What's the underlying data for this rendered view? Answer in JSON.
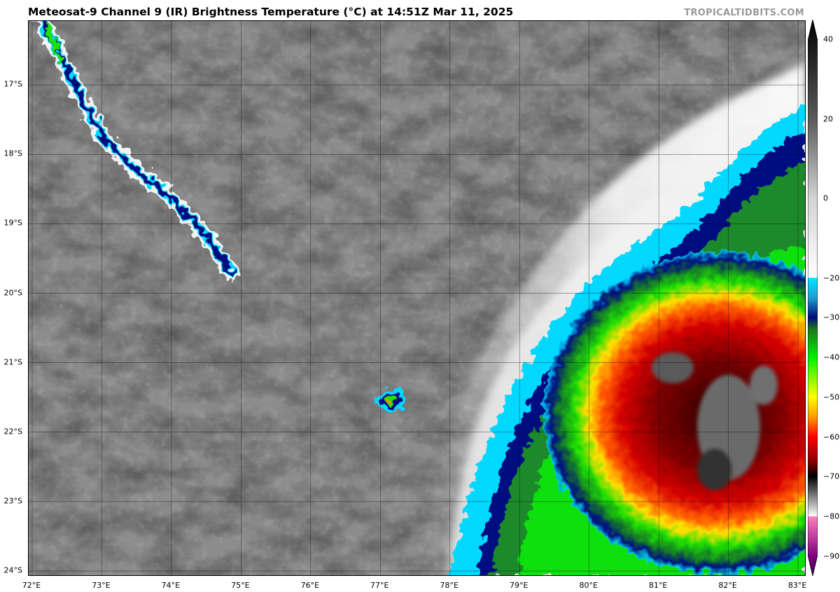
{
  "header": {
    "title": "Meteosat-9 Channel 9 (IR) Brightness Temperature (°C) at 14:51Z Mar 11, 2025",
    "credit": "TROPICALTIDBITS.COM"
  },
  "map": {
    "lat_labels": [
      "17°S",
      "18°S",
      "19°S",
      "20°S",
      "21°S",
      "22°S",
      "23°S",
      "24°S"
    ],
    "lon_labels": [
      "72°E",
      "73°E",
      "74°E",
      "75°E",
      "76°E",
      "77°E",
      "78°E",
      "79°E",
      "80°E",
      "81°E",
      "82°E",
      "83°E"
    ],
    "extent": {
      "lon_min": 71.95,
      "lon_max": 83.12,
      "lat_top": 16.08,
      "lat_bottom": 24.08
    },
    "features": [
      "tropical-cyclone-cold-cloud-top",
      "outer-rain-band-convection",
      "isolated-convective-cell-77E-21.5S",
      "convective-line-72E-75E"
    ]
  },
  "colorbar": {
    "ticks": [
      "40",
      "20",
      "0",
      "−20",
      "−30",
      "−40",
      "−50",
      "−60",
      "−70",
      "−80",
      "−90"
    ],
    "range": [
      -95,
      45
    ],
    "stops": [
      {
        "t": 45,
        "color": "#000000"
      },
      {
        "t": 20,
        "color": "#5a5a5a"
      },
      {
        "t": 0,
        "color": "#d4d4d4"
      },
      {
        "t": -20,
        "color": "#ffffff"
      },
      {
        "t": -20.01,
        "color": "#00e8ff"
      },
      {
        "t": -25,
        "color": "#1b9fd0"
      },
      {
        "t": -30,
        "color": "#000a7a"
      },
      {
        "t": -33,
        "color": "#1a7a1a"
      },
      {
        "t": -40,
        "color": "#00f000"
      },
      {
        "t": -50,
        "color": "#ffff00"
      },
      {
        "t": -55,
        "color": "#ff9a00"
      },
      {
        "t": -60,
        "color": "#ff0000"
      },
      {
        "t": -66,
        "color": "#8b0000"
      },
      {
        "t": -70,
        "color": "#000000"
      },
      {
        "t": -80,
        "color": "#ffffff"
      },
      {
        "t": -80.01,
        "color": "#ff80c0"
      },
      {
        "t": -90,
        "color": "#800080"
      },
      {
        "t": -95,
        "color": "#40004a"
      }
    ]
  }
}
